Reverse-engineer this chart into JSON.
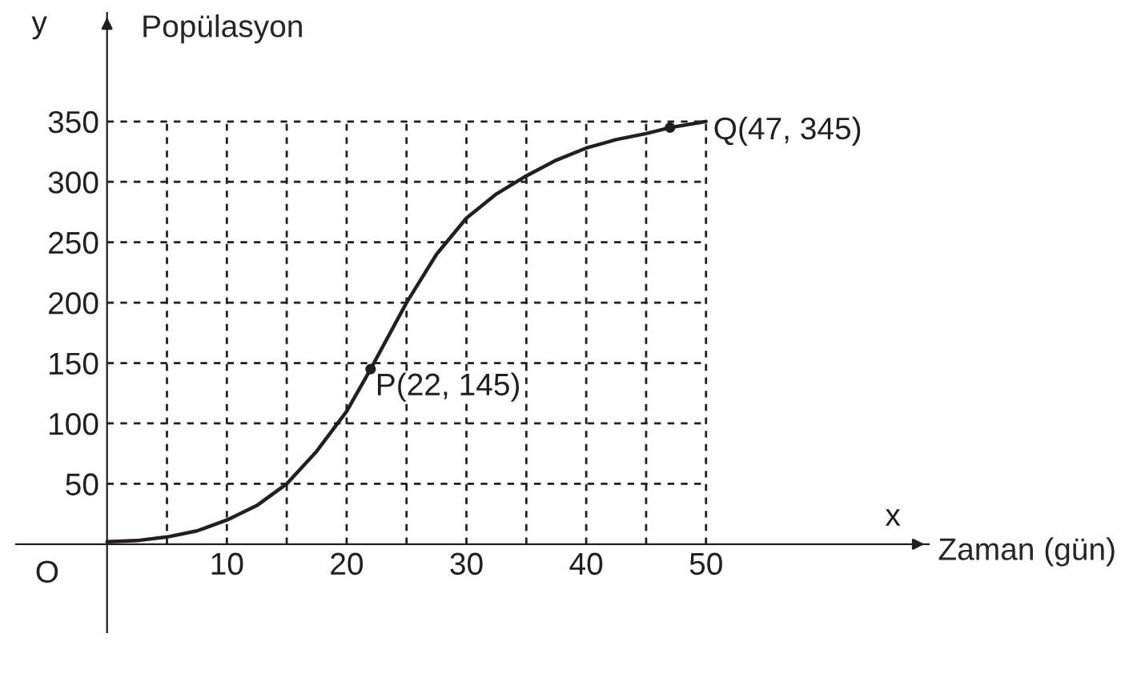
{
  "chart_data": {
    "type": "line",
    "xlabel": "Zaman (gün)",
    "ylabel": "Popülasyon",
    "x": [
      0,
      2.5,
      5,
      7.5,
      10,
      12.5,
      15,
      17.5,
      20,
      22,
      25,
      27.5,
      30,
      32.5,
      35,
      37.5,
      40,
      42.5,
      45,
      47,
      50
    ],
    "series": [
      {
        "color": "#231f20",
        "values": [
          2,
          3,
          6,
          11,
          20,
          32,
          50,
          77,
          110,
          145,
          200,
          240,
          270,
          290,
          305,
          318,
          328,
          335,
          340,
          345,
          350
        ]
      },
      {
        "type": "scatter",
        "color": "#231f20",
        "x": [
          22,
          47
        ],
        "values": [
          145,
          345
        ]
      }
    ],
    "xlim": [
      -7.6,
      68.6
    ],
    "ylim": [
      -73,
      440
    ],
    "xticks": [
      10,
      20,
      30,
      40,
      50
    ],
    "yticks": [
      50,
      100,
      150,
      200,
      250,
      300,
      350
    ],
    "line_style": "solid",
    "ref_lines": [
      {
        "axis": "x",
        "value": 5,
        "line_style": "dashed"
      },
      {
        "axis": "x",
        "value": 10,
        "line_style": "dashed"
      },
      {
        "axis": "x",
        "value": 15,
        "line_style": "dashed"
      },
      {
        "axis": "x",
        "value": 20,
        "line_style": "dashed"
      },
      {
        "axis": "x",
        "value": 25,
        "line_style": "dashed"
      },
      {
        "axis": "x",
        "value": 30,
        "line_style": "dashed"
      },
      {
        "axis": "x",
        "value": 35,
        "line_style": "dashed"
      },
      {
        "axis": "x",
        "value": 40,
        "line_style": "dashed"
      },
      {
        "axis": "x",
        "value": 45,
        "line_style": "dashed"
      },
      {
        "axis": "x",
        "value": 50,
        "line_style": "dashed"
      },
      {
        "axis": "y",
        "value": 50,
        "line_style": "dashed"
      },
      {
        "axis": "y",
        "value": 100,
        "line_style": "dashed"
      },
      {
        "axis": "y",
        "value": 150,
        "line_style": "dashed"
      },
      {
        "axis": "y",
        "value": 200,
        "line_style": "dashed"
      },
      {
        "axis": "y",
        "value": 250,
        "line_style": "dashed"
      },
      {
        "axis": "y",
        "value": 300,
        "line_style": "dashed"
      },
      {
        "axis": "y",
        "value": 350,
        "line_style": "dashed"
      }
    ],
    "annotations": [
      {
        "text": "P(22, 145)",
        "x": 22,
        "y": 145
      },
      {
        "text": "Q(47, 345)",
        "x": 47,
        "y": 345
      },
      "O",
      "x",
      "y"
    ]
  }
}
